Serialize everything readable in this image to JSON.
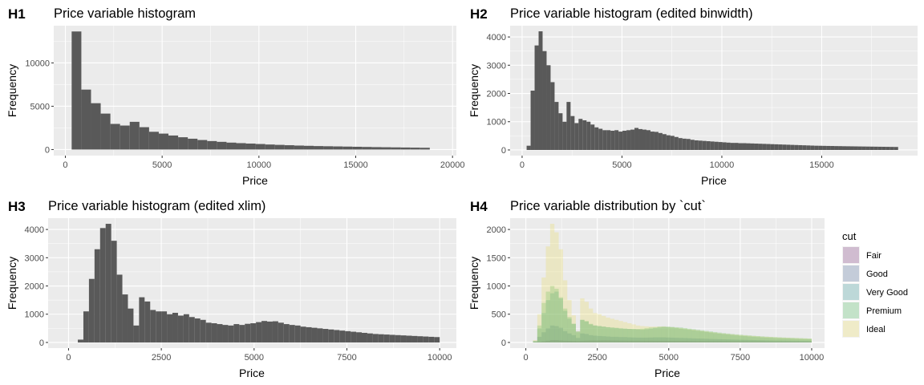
{
  "panels": [
    {
      "tag": "H1",
      "chart_data": {
        "type": "histogram",
        "title": "Price variable histogram",
        "xlabel": "Price",
        "ylabel": "Frequency",
        "xlim": [
          -600,
          20200
        ],
        "ylim": [
          -700,
          14300
        ],
        "x_ticks": [
          0,
          5000,
          10000,
          15000,
          20000
        ],
        "y_ticks": [
          0,
          5000,
          10000
        ],
        "bin_start": 326,
        "binwidth": 500,
        "counts": [
          13630,
          6920,
          5350,
          4150,
          2960,
          2770,
          3200,
          2580,
          2050,
          1840,
          1620,
          1420,
          1250,
          1100,
          980,
          890,
          800,
          740,
          690,
          640,
          580,
          540,
          500,
          460,
          430,
          400,
          380,
          360,
          340,
          320,
          300,
          280,
          265,
          250,
          235,
          220,
          205
        ],
        "fill": "#595959",
        "grid": true
      }
    },
    {
      "tag": "H2",
      "chart_data": {
        "type": "histogram",
        "title": "Price variable histogram (edited binwidth)",
        "xlabel": "Price",
        "ylabel": "Frequency",
        "xlim": [
          -600,
          19800
        ],
        "ylim": [
          -200,
          4400
        ],
        "x_ticks": [
          0,
          5000,
          10000,
          15000
        ],
        "y_ticks": [
          0,
          1000,
          2000,
          3000,
          4000
        ],
        "bin_start": 226,
        "binwidth": 200,
        "counts": [
          150,
          2100,
          3700,
          4200,
          3500,
          3000,
          2400,
          1700,
          1300,
          1000,
          1700,
          1200,
          950,
          1100,
          1050,
          1000,
          900,
          800,
          750,
          700,
          700,
          680,
          700,
          650,
          680,
          700,
          720,
          780,
          740,
          720,
          700,
          650,
          640,
          600,
          560,
          520,
          500,
          460,
          420,
          400,
          390,
          360,
          340,
          330,
          320,
          310,
          300,
          290,
          280,
          270,
          260,
          250,
          250,
          240,
          240,
          235,
          230,
          225,
          220,
          215,
          210,
          205,
          200,
          195,
          190,
          185,
          180,
          175,
          170,
          165,
          160,
          155,
          150,
          148,
          145,
          142,
          140,
          137,
          135,
          132,
          130,
          128,
          126,
          124,
          122,
          120,
          118,
          116,
          114,
          112,
          110,
          108,
          106
        ],
        "fill": "#595959",
        "grid": true
      }
    },
    {
      "tag": "H3",
      "chart_data": {
        "type": "histogram",
        "title": "Price variable histogram (edited xlim)",
        "xlabel": "Price",
        "ylabel": "Frequency",
        "xlim": [
          -550,
          10450
        ],
        "ylim": [
          -200,
          4400
        ],
        "x_ticks": [
          0,
          2500,
          5000,
          7500,
          10000
        ],
        "y_ticks": [
          0,
          1000,
          2000,
          3000,
          4000
        ],
        "bin_start": 250,
        "binwidth": 150,
        "counts": [
          100,
          1100,
          2250,
          3300,
          4050,
          4200,
          3600,
          2400,
          1700,
          1200,
          600,
          1600,
          1450,
          1150,
          1100,
          1100,
          1000,
          1050,
          950,
          1000,
          900,
          850,
          800,
          700,
          680,
          650,
          620,
          600,
          650,
          620,
          660,
          680,
          720,
          760,
          740,
          750,
          700,
          650,
          620,
          600,
          560,
          540,
          520,
          500,
          480,
          460,
          440,
          420,
          400,
          380,
          360,
          340,
          320,
          300,
          290,
          280,
          270,
          260,
          250,
          240,
          230,
          220,
          210,
          200,
          190
        ],
        "fill": "#595959",
        "grid": true
      }
    },
    {
      "tag": "H4",
      "chart_data": {
        "type": "histogram",
        "stacking": "overlay",
        "title": "Price variable distribution by `cut`",
        "xlabel": "Price",
        "ylabel": "Frequency",
        "xlim": [
          -550,
          10450
        ],
        "ylim": [
          -100,
          2200
        ],
        "x_ticks": [
          0,
          2500,
          5000,
          7500,
          10000
        ],
        "y_ticks": [
          0,
          500,
          1000,
          1500,
          2000
        ],
        "bin_start": 250,
        "binwidth": 150,
        "legend_title": "cut",
        "legend_position": "right",
        "opacity": 0.25,
        "series": [
          {
            "name": "Fair",
            "color": "#6a1b6a",
            "counts": [
              5,
              10,
              20,
              30,
              40,
              40,
              35,
              30,
              28,
              26,
              24,
              30,
              32,
              33,
              34,
              35,
              36,
              35,
              34,
              33,
              32,
              31,
              30,
              30,
              30,
              30,
              29,
              29,
              28,
              28,
              28,
              28,
              27,
              27,
              26,
              26,
              25,
              25,
              24,
              24,
              23,
              23,
              22,
              22,
              21,
              21,
              20,
              20,
              19,
              19,
              18,
              18,
              17,
              17,
              16,
              16,
              15,
              15,
              14,
              14,
              13,
              13,
              12,
              12,
              11
            ]
          },
          {
            "name": "Good",
            "color": "#3b5b8f",
            "counts": [
              15,
              100,
              180,
              250,
              300,
              290,
              260,
              200,
              160,
              130,
              80,
              160,
              150,
              130,
              120,
              115,
              110,
              105,
              100,
              100,
              95,
              95,
              90,
              88,
              86,
              85,
              86,
              88,
              90,
              90,
              90,
              88,
              85,
              82,
              80,
              78,
              75,
              72,
              70,
              68,
              65,
              62,
              60,
              58,
              56,
              54,
              52,
              50,
              48,
              46,
              44,
              42,
              40,
              38,
              36,
              35,
              34,
              33,
              32,
              31,
              30,
              29,
              28,
              27,
              26
            ]
          },
          {
            "name": "Very Good",
            "color": "#1f8a8a",
            "counts": [
              30,
              250,
              520,
              750,
              870,
              900,
              780,
              560,
              420,
              330,
              200,
              400,
              370,
              320,
              300,
              290,
              280,
              270,
              260,
              255,
              250,
              245,
              240,
              235,
              230,
              225,
              235,
              245,
              255,
              265,
              270,
              270,
              265,
              255,
              245,
              235,
              225,
              215,
              205,
              195,
              185,
              175,
              165,
              155,
              148,
              140,
              132,
              125,
              118,
              112,
              106,
              100,
              95,
              90,
              86,
              82,
              78,
              75,
              72,
              69,
              66,
              63,
              60,
              58,
              55
            ]
          },
          {
            "name": "Premium",
            "color": "#39b54a",
            "counts": [
              20,
              300,
              700,
              900,
              1000,
              950,
              800,
              600,
              450,
              330,
              180,
              400,
              380,
              330,
              300,
              290,
              280,
              270,
              265,
              260,
              250,
              245,
              240,
              240,
              240,
              245,
              255,
              265,
              270,
              280,
              285,
              280,
              275,
              270,
              265,
              255,
              245,
              235,
              225,
              215,
              205,
              195,
              185,
              175,
              165,
              158,
              150,
              143,
              136,
              130,
              124,
              118,
              113,
              108,
              103,
              99,
              95,
              91,
              88,
              85,
              82,
              79,
              76,
              73,
              70
            ]
          },
          {
            "name": "Ideal",
            "color": "#e6d94a",
            "counts": [
              40,
              500,
              1150,
              1700,
              2100,
              1950,
              1650,
              1100,
              750,
              480,
              200,
              780,
              720,
              600,
              520,
              500,
              470,
              440,
              420,
              400,
              380,
              360,
              340,
              320,
              300,
              290,
              285,
              280,
              280,
              280,
              280,
              275,
              270,
              262,
              255,
              245,
              235,
              225,
              215,
              205,
              195,
              185,
              175,
              165,
              157,
              150,
              143,
              136,
              130,
              124,
              118,
              113,
              108,
              103,
              99,
              95,
              91,
              87,
              84,
              81,
              78,
              75,
              72,
              69,
              66
            ]
          }
        ],
        "grid": true
      }
    }
  ]
}
